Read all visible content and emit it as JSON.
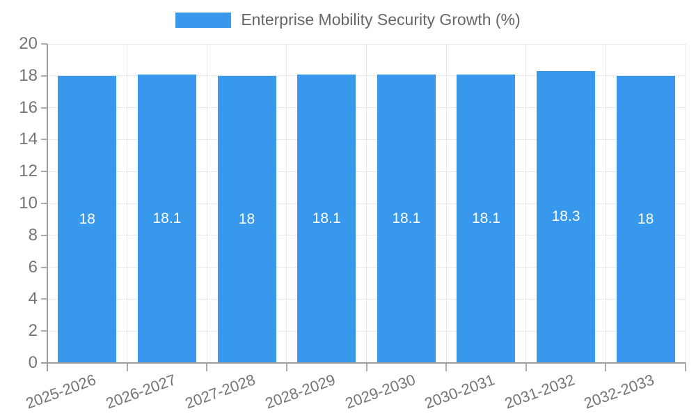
{
  "colors": {
    "bar": "#3899EC",
    "grid": "#E6E6E6",
    "axis": "#9E9E9E",
    "tick": "#ABABAB",
    "tick_label": "#757575",
    "legend_text": "#666666",
    "bar_label": "#FFFFFF",
    "background": "#FFFFFF"
  },
  "legend": {
    "swatch_icon": "legend-color-swatch"
  },
  "chart_data": {
    "type": "bar",
    "title": "Enterprise Mobility Security Growth (%)",
    "categories": [
      "2025-2026",
      "2026-2027",
      "2027-2028",
      "2028-2029",
      "2029-2030",
      "2030-2031",
      "2031-2032",
      "2032-2033"
    ],
    "values": [
      18,
      18.1,
      18,
      18.1,
      18.1,
      18.1,
      18.3,
      18
    ],
    "labels": [
      "18",
      "18.1",
      "18",
      "18.1",
      "18.1",
      "18.1",
      "18.3",
      "18"
    ],
    "xlabel": "",
    "ylabel": "",
    "ylim": [
      0,
      20
    ],
    "yticks": [
      0,
      2,
      4,
      6,
      8,
      10,
      12,
      14,
      16,
      18,
      20
    ],
    "ytick_labels": [
      "0",
      "2",
      "4",
      "6",
      "8",
      "10",
      "12",
      "14",
      "16",
      "18",
      "20"
    ],
    "grid": true,
    "legend_position": "top",
    "bar_label_position": "center",
    "x_label_rotation_deg": -20
  }
}
